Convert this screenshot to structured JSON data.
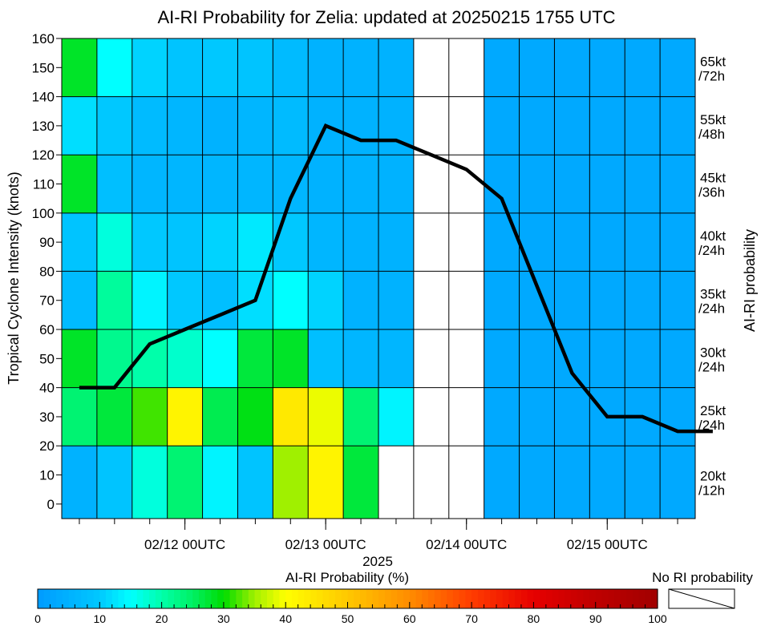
{
  "chart_data": {
    "type": "heatmap",
    "title": "AI-RI Probability for Zelia: updated at 20250215 1755 UTC",
    "ylabel": "Tropical Cyclone Intensity (knots)",
    "right_label": "AI-RI probability",
    "xlabel": "2025",
    "ylim": [
      -5,
      160
    ],
    "y_ticks": [
      0,
      10,
      20,
      30,
      40,
      50,
      60,
      70,
      80,
      90,
      100,
      110,
      120,
      130,
      140,
      150,
      160
    ],
    "x_tick_labels": [
      {
        "label": "02/12 00UTC",
        "col": 3.5
      },
      {
        "label": "02/13 00UTC",
        "col": 7.5
      },
      {
        "label": "02/14 00UTC",
        "col": 11.5
      },
      {
        "label": "02/15 00UTC",
        "col": 15.5
      }
    ],
    "bin_labels": [
      {
        "line1": "20kt",
        "line2": "/12h"
      },
      {
        "line1": "25kt",
        "line2": "/24h"
      },
      {
        "line1": "30kt",
        "line2": "/24h"
      },
      {
        "line1": "35kt",
        "line2": "/24h"
      },
      {
        "line1": "40kt",
        "line2": "/24h"
      },
      {
        "line1": "45kt",
        "line2": "/36h"
      },
      {
        "line1": "55kt",
        "line2": "/48h"
      },
      {
        "line1": "65kt",
        "line2": "/72h"
      }
    ],
    "n_cols": 18,
    "row_note": "rows listed bottom to top: 20kt/12h, 25kt/24h, 30kt/24h, 35kt/24h, 40kt/24h, 45kt/36h, 55kt/48h, 65kt/72h; null = no RI probability",
    "probabilities": [
      [
        5,
        9,
        17,
        24,
        14,
        9,
        35,
        42,
        27,
        null,
        null,
        null,
        3,
        3,
        3,
        3,
        3,
        3
      ],
      [
        24,
        27,
        32,
        42,
        26,
        29,
        44,
        39,
        24,
        14,
        null,
        null,
        3,
        3,
        3,
        3,
        3,
        3
      ],
      [
        28,
        22,
        20,
        18,
        15,
        27,
        28,
        8,
        6,
        6,
        null,
        null,
        3,
        3,
        3,
        3,
        3,
        3
      ],
      [
        7,
        21,
        14,
        10,
        8,
        12,
        15,
        11,
        5,
        5,
        null,
        null,
        3,
        3,
        3,
        3,
        3,
        3
      ],
      [
        9,
        17,
        10,
        9,
        11,
        13,
        10,
        6,
        5,
        5,
        null,
        null,
        3,
        3,
        3,
        3,
        3,
        3
      ],
      [
        28,
        8,
        6,
        6,
        6,
        6,
        6,
        5,
        5,
        5,
        null,
        null,
        3,
        3,
        3,
        3,
        3,
        3
      ],
      [
        12,
        10,
        7,
        6,
        5,
        6,
        7,
        5,
        5,
        5,
        null,
        null,
        3,
        3,
        3,
        3,
        3,
        3
      ],
      [
        28,
        15,
        11,
        9,
        10,
        9,
        7,
        5,
        5,
        5,
        null,
        null,
        3,
        3,
        3,
        3,
        3,
        3
      ]
    ],
    "intensity": {
      "name": "Intensity (knots)",
      "points": [
        [
          0.5,
          40
        ],
        [
          1.5,
          40
        ],
        [
          2.5,
          55
        ],
        [
          3.5,
          60
        ],
        [
          4.5,
          65
        ],
        [
          5.5,
          70
        ],
        [
          6.5,
          105
        ],
        [
          7.5,
          130
        ],
        [
          8.5,
          125
        ],
        [
          9.5,
          125
        ],
        [
          10.5,
          120
        ],
        [
          11.5,
          115
        ],
        [
          12.5,
          105
        ],
        [
          13.5,
          75
        ],
        [
          14.5,
          45
        ],
        [
          15.5,
          30
        ],
        [
          16.5,
          30
        ],
        [
          17.5,
          25
        ],
        [
          18.5,
          25
        ]
      ]
    },
    "colorbar": {
      "title": "AI-RI Probability (%)",
      "range": [
        0,
        100
      ],
      "tick_labels": [
        "0",
        "10",
        "20",
        "30",
        "40",
        "50",
        "60",
        "70",
        "80",
        "90",
        "100"
      ],
      "no_ri_label": "No RI probability"
    }
  }
}
